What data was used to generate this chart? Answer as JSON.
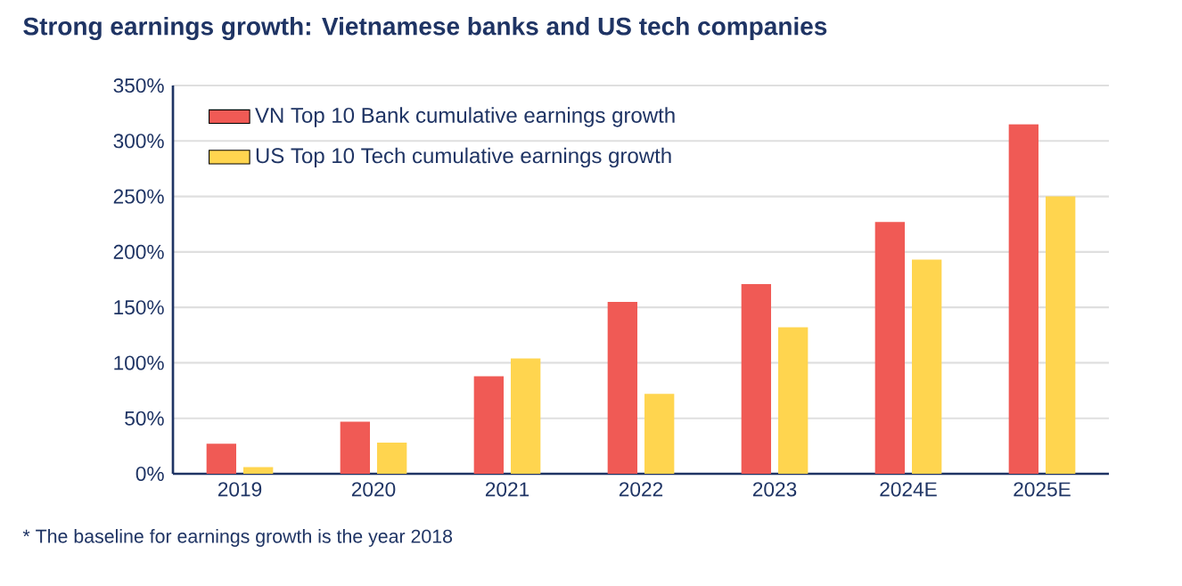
{
  "chart_data": {
    "type": "bar",
    "title": "Strong earnings growth: Vietnamese banks and US tech companies",
    "categories": [
      "2019",
      "2020",
      "2021",
      "2022",
      "2023",
      "2024E",
      "2025E"
    ],
    "series": [
      {
        "name": "VN Top 10 Bank cumulative earnings growth",
        "color": "#f05a55",
        "values": [
          27,
          47,
          88,
          155,
          171,
          227,
          315
        ]
      },
      {
        "name": "US Top 10 Tech cumulative earnings growth",
        "color": "#ffd54f",
        "values": [
          6,
          28,
          104,
          72,
          132,
          193,
          250
        ]
      }
    ],
    "ylim": [
      0,
      350
    ],
    "yticks": [
      {
        "value": 0,
        "label": "0%"
      },
      {
        "value": 50,
        "label": "50%"
      },
      {
        "value": 100,
        "label": "100%"
      },
      {
        "value": 150,
        "label": "150%"
      },
      {
        "value": 200,
        "label": "200%"
      },
      {
        "value": 250,
        "label": "250%"
      },
      {
        "value": 300,
        "label": "300%"
      },
      {
        "value": 350,
        "label": "350%"
      }
    ],
    "grid": "y",
    "legend": "top left",
    "annotations": [
      "* The baseline for earnings growth is the year 2018"
    ]
  }
}
